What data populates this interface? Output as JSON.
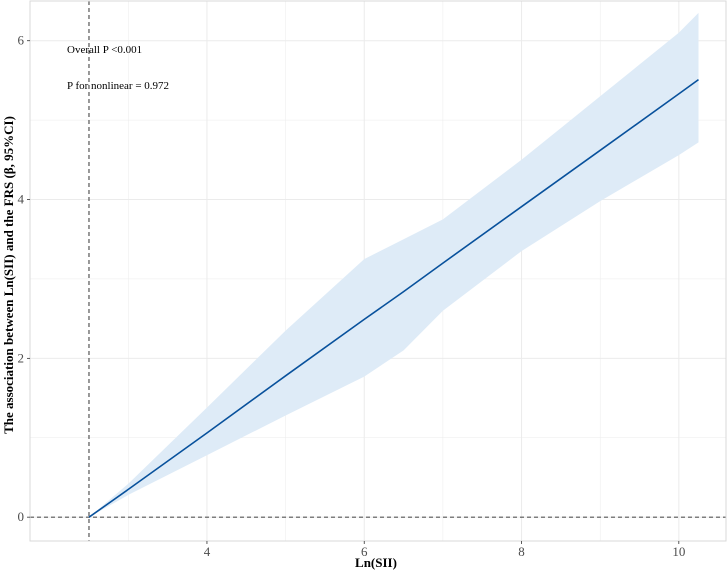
{
  "chart_data": {
    "type": "line",
    "title": "",
    "xlabel": "Ln(SII)",
    "ylabel": "The association between Ln(SII) and the FRS (β, 95%CI)",
    "xlim": [
      1.75,
      10.6
    ],
    "ylim": [
      -0.3,
      6.5
    ],
    "xticks": [
      4,
      6,
      8,
      10
    ],
    "yticks": [
      0,
      2,
      4,
      6
    ],
    "grid": true,
    "reference_lines": {
      "vertical_x": 2.5,
      "horizontal_y": 0
    },
    "series": [
      {
        "x": [
          2.5,
          3,
          4,
          5,
          6,
          6.5,
          7,
          8,
          9,
          10,
          10.25
        ],
        "y": [
          0.0,
          0.35,
          1.06,
          1.78,
          2.49,
          2.84,
          3.2,
          3.91,
          4.62,
          5.33,
          5.51
        ],
        "lower": [
          0.0,
          0.28,
          0.78,
          1.28,
          1.77,
          2.1,
          2.6,
          3.35,
          3.98,
          4.56,
          4.72
        ],
        "upper": [
          0.0,
          0.42,
          1.38,
          2.35,
          3.25,
          3.5,
          3.75,
          4.5,
          5.3,
          6.1,
          6.35
        ]
      }
    ],
    "annotations": [
      "Overall P <0.001",
      "P for nonlinear = 0.972"
    ],
    "colors": {
      "line": "#08519c",
      "band": "#deebf7",
      "reference": "#555555",
      "grid": "#ebebeb",
      "panel_border": "#d9d9d9"
    }
  }
}
